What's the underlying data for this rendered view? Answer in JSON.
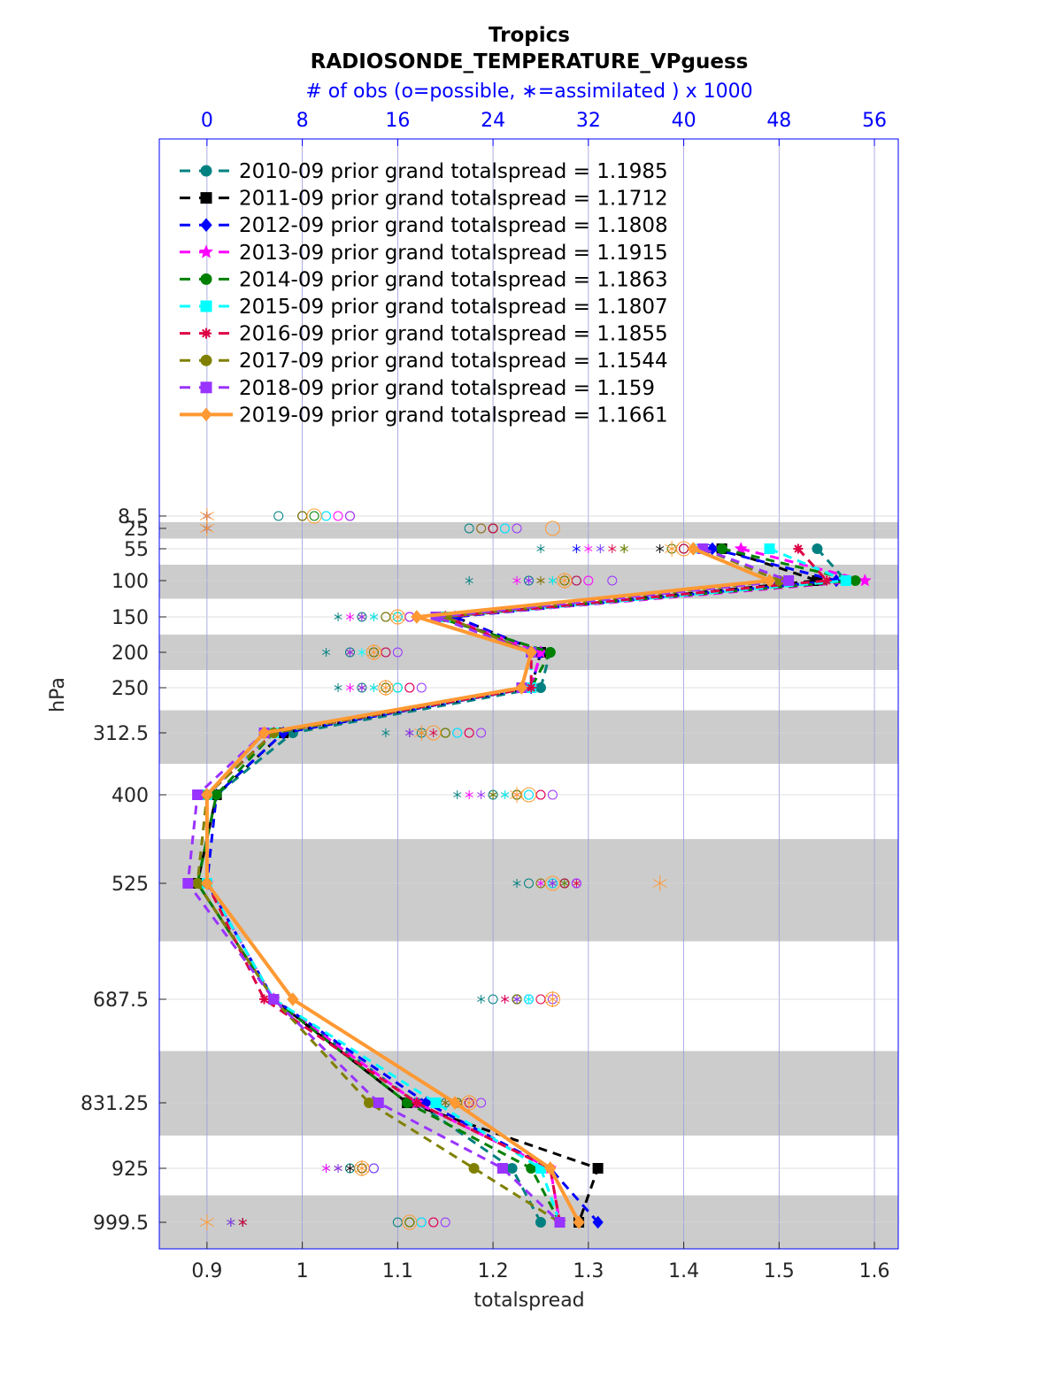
{
  "title_line1": "Tropics",
  "title_line2": "RADIOSONDE_TEMPERATURE_VPguess",
  "top_axis_label": "# of obs (o=possible, ∗=assimilated ) x 1000",
  "chart_data": {
    "type": "line",
    "xlabel": "totalspread",
    "ylabel": "hPa",
    "xlim": [
      0.85,
      1.625
    ],
    "x_ticks": [
      0.9,
      1,
      1.1,
      1.2,
      1.3,
      1.4,
      1.5,
      1.6
    ],
    "x_tick_labels": [
      "0.9",
      "1",
      "1.1",
      "1.2",
      "1.3",
      "1.4",
      "1.5",
      "1.6"
    ],
    "top_xlim": [
      -4,
      58
    ],
    "top_ticks": [
      0,
      8,
      16,
      24,
      32,
      40,
      48,
      56
    ],
    "top_tick_labels": [
      "0",
      "8",
      "16",
      "24",
      "32",
      "40",
      "48",
      "56"
    ],
    "levels": [
      8.5,
      25,
      55,
      100,
      150,
      200,
      250,
      312.5,
      400,
      525,
      687.5,
      831.25,
      925,
      999.5
    ],
    "level_labels": [
      "8.5",
      "25",
      "55",
      "100",
      "150",
      "200",
      "250",
      "312.5",
      "400",
      "525",
      "687.5",
      "831.25",
      "925",
      "999.5"
    ],
    "grid": true,
    "legend_position": "top-left",
    "series": [
      {
        "name": "2010-09 prior grand totalspread = 1.1985",
        "color": "#008080",
        "marker": "circle",
        "style": "dashed",
        "values": [
          null,
          null,
          1.54,
          1.57,
          1.14,
          1.26,
          1.25,
          0.99,
          0.91,
          0.89,
          0.97,
          1.12,
          1.22,
          1.25
        ]
      },
      {
        "name": "2011-09 prior grand totalspread = 1.1712",
        "color": "#000000",
        "marker": "square",
        "style": "dashed",
        "values": [
          null,
          null,
          1.44,
          1.54,
          1.16,
          1.25,
          1.24,
          0.98,
          0.91,
          0.89,
          0.97,
          1.11,
          1.31,
          1.29
        ]
      },
      {
        "name": "2012-09 prior grand totalspread = 1.1808",
        "color": "#0000ff",
        "marker": "diamond",
        "style": "dashed",
        "values": [
          null,
          null,
          1.43,
          1.56,
          1.16,
          1.25,
          1.24,
          0.98,
          0.91,
          0.9,
          0.97,
          1.13,
          1.26,
          1.31
        ]
      },
      {
        "name": "2013-09 prior grand totalspread = 1.1915",
        "color": "#ff00ff",
        "marker": "star",
        "style": "dashed",
        "values": [
          null,
          null,
          1.46,
          1.59,
          1.15,
          1.25,
          1.24,
          0.97,
          0.9,
          0.9,
          0.97,
          1.12,
          1.26,
          1.27
        ]
      },
      {
        "name": "2014-09 prior grand totalspread = 1.1863",
        "color": "#008000",
        "marker": "circle",
        "style": "dashed",
        "values": [
          null,
          null,
          1.44,
          1.58,
          1.14,
          1.26,
          1.24,
          0.97,
          0.91,
          0.89,
          0.97,
          1.11,
          1.24,
          1.27
        ]
      },
      {
        "name": "2015-09 prior grand totalspread = 1.1807",
        "color": "#00ffff",
        "marker": "square",
        "style": "dashed",
        "values": [
          null,
          null,
          1.49,
          1.57,
          1.15,
          1.24,
          1.24,
          0.97,
          0.9,
          0.9,
          0.97,
          1.14,
          1.25,
          1.27
        ]
      },
      {
        "name": "2016-09 prior grand totalspread = 1.1855",
        "color": "#dd0044",
        "marker": "asterisk",
        "style": "dashed",
        "values": [
          null,
          null,
          1.52,
          1.55,
          1.15,
          1.24,
          1.24,
          0.97,
          0.9,
          0.9,
          0.96,
          1.12,
          1.26,
          1.27
        ]
      },
      {
        "name": "2017-09 prior grand totalspread = 1.1544",
        "color": "#808000",
        "marker": "circle",
        "style": "dashed",
        "values": [
          null,
          null,
          1.42,
          1.5,
          1.15,
          1.24,
          1.23,
          0.97,
          0.9,
          0.89,
          0.97,
          1.07,
          1.18,
          1.27
        ]
      },
      {
        "name": "2018-09 prior grand totalspread = 1.159",
        "color": "#9933ff",
        "marker": "square",
        "style": "dashed",
        "values": [
          null,
          null,
          1.42,
          1.51,
          1.14,
          1.24,
          1.23,
          0.96,
          0.89,
          0.88,
          0.97,
          1.08,
          1.21,
          1.27
        ]
      },
      {
        "name": "2019-09 prior grand totalspread = 1.1661",
        "color": "#ff9933",
        "marker": "diamond",
        "style": "solid",
        "values": [
          null,
          null,
          1.41,
          1.49,
          1.12,
          1.24,
          1.23,
          0.96,
          0.9,
          0.9,
          0.99,
          1.16,
          1.26,
          1.29
        ]
      }
    ],
    "obs_possible": [
      [
        6,
        22,
        39,
        27,
        13,
        12,
        13,
        18,
        24,
        27,
        24,
        20,
        12,
        16
      ],
      [
        8,
        24,
        40,
        30,
        15,
        14,
        15,
        20,
        26,
        29,
        26,
        21,
        13,
        17
      ],
      [
        10,
        25,
        42,
        31,
        16,
        14,
        16,
        21,
        27,
        30,
        27,
        22,
        14,
        18
      ],
      [
        11,
        23,
        41,
        32,
        17,
        15,
        17,
        22,
        28,
        31,
        27,
        22,
        13,
        19
      ],
      [
        9,
        24,
        40,
        30,
        16,
        14,
        16,
        20,
        26,
        30,
        26,
        21,
        13,
        17
      ],
      [
        10,
        25,
        41,
        31,
        16,
        15,
        16,
        21,
        27,
        29,
        27,
        22,
        14,
        18
      ],
      [
        12,
        24,
        40,
        31,
        17,
        15,
        17,
        22,
        28,
        30,
        28,
        22,
        13,
        19
      ],
      [
        8,
        23,
        39,
        30,
        15,
        14,
        15,
        20,
        26,
        28,
        26,
        21,
        13,
        17
      ],
      [
        12,
        26,
        43,
        34,
        17,
        16,
        18,
        23,
        29,
        31,
        29,
        23,
        14,
        20
      ],
      [
        9,
        29,
        40,
        30,
        16,
        14,
        15,
        19,
        27,
        29,
        29,
        22,
        13,
        17
      ]
    ],
    "obs_assimilated": [
      [
        0,
        0,
        28,
        22,
        11,
        10,
        11,
        15,
        21,
        26,
        23,
        18,
        10,
        2
      ],
      [
        0,
        0,
        38,
        29,
        14,
        12,
        14,
        18,
        25,
        30,
        26,
        21,
        12,
        3
      ],
      [
        0,
        0,
        31,
        27,
        13,
        12,
        13,
        17,
        24,
        29,
        26,
        20,
        11,
        2
      ],
      [
        0,
        0,
        32,
        26,
        12,
        12,
        12,
        17,
        22,
        28,
        25,
        19,
        10,
        3
      ],
      [
        0,
        0,
        35,
        28,
        13,
        12,
        13,
        17,
        24,
        29,
        26,
        20,
        11,
        3
      ],
      [
        0,
        0,
        33,
        29,
        14,
        13,
        14,
        18,
        25,
        30,
        27,
        20,
        11,
        2
      ],
      [
        0,
        0,
        34,
        28,
        13,
        12,
        13,
        19,
        26,
        31,
        25,
        20,
        11,
        3
      ],
      [
        0,
        0,
        35,
        28,
        13,
        12,
        13,
        18,
        24,
        30,
        26,
        20,
        11,
        2
      ],
      [
        0,
        0,
        33,
        27,
        13,
        12,
        13,
        17,
        23,
        29,
        26,
        19,
        11,
        2
      ],
      [
        0,
        0,
        39,
        30,
        16,
        14,
        15,
        18,
        26,
        38,
        29,
        22,
        13,
        0
      ]
    ]
  }
}
